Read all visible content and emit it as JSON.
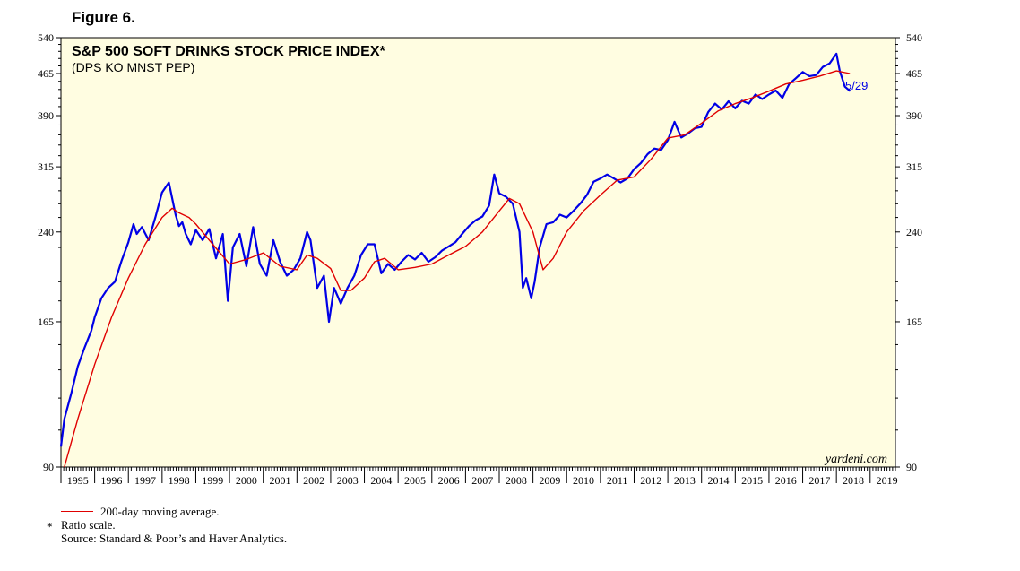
{
  "figure_label": "Figure 6.",
  "chart_data": {
    "type": "line",
    "title": "S&P 500 SOFT DRINKS STOCK PRICE INDEX*",
    "subtitle": "(DPS KO MNST PEP)",
    "scale": "log",
    "ylim": [
      90,
      540
    ],
    "y_ticks": [
      90,
      165,
      240,
      315,
      390,
      465,
      540
    ],
    "y_tick_labels": [
      "90",
      "165",
      "240",
      "315",
      "390",
      "465",
      "540"
    ],
    "xlim": [
      1995,
      2019.75
    ],
    "x_tick_labels": [
      "1995",
      "1996",
      "1997",
      "1998",
      "1999",
      "2000",
      "2001",
      "2002",
      "2003",
      "2004",
      "2005",
      "2006",
      "2007",
      "2008",
      "2009",
      "2010",
      "2011",
      "2012",
      "2013",
      "2014",
      "2015",
      "2016",
      "2017",
      "2018",
      "2019"
    ],
    "latest_label": "5/29",
    "watermark": "yardeni.com",
    "background_color": "#fffde1",
    "series": [
      {
        "name": "S&P 500 Soft Drinks Stock Price Index",
        "color": "#0000e6",
        "x": [
          1995.0,
          1995.1,
          1995.3,
          1995.5,
          1995.7,
          1995.9,
          1996.0,
          1996.2,
          1996.4,
          1996.6,
          1996.8,
          1997.0,
          1997.15,
          1997.25,
          1997.4,
          1997.6,
          1997.8,
          1998.0,
          1998.2,
          1998.4,
          1998.5,
          1998.6,
          1998.7,
          1998.85,
          1999.0,
          1999.2,
          1999.4,
          1999.6,
          1999.8,
          1999.95,
          2000.1,
          2000.3,
          2000.5,
          2000.7,
          2000.9,
          2001.1,
          2001.3,
          2001.5,
          2001.7,
          2001.9,
          2002.1,
          2002.3,
          2002.4,
          2002.6,
          2002.8,
          2002.95,
          2003.1,
          2003.3,
          2003.5,
          2003.7,
          2003.9,
          2004.1,
          2004.3,
          2004.5,
          2004.7,
          2004.9,
          2005.1,
          2005.3,
          2005.5,
          2005.7,
          2005.9,
          2006.1,
          2006.3,
          2006.5,
          2006.7,
          2006.9,
          2007.1,
          2007.3,
          2007.5,
          2007.7,
          2007.85,
          2008.0,
          2008.2,
          2008.4,
          2008.6,
          2008.7,
          2008.8,
          2008.95,
          2009.05,
          2009.2,
          2009.4,
          2009.6,
          2009.8,
          2010.0,
          2010.2,
          2010.4,
          2010.6,
          2010.8,
          2011.0,
          2011.2,
          2011.4,
          2011.6,
          2011.8,
          2012.0,
          2012.2,
          2012.4,
          2012.6,
          2012.8,
          2013.0,
          2013.2,
          2013.4,
          2013.6,
          2013.8,
          2014.0,
          2014.2,
          2014.4,
          2014.6,
          2014.8,
          2015.0,
          2015.2,
          2015.4,
          2015.6,
          2015.8,
          2016.0,
          2016.2,
          2016.4,
          2016.6,
          2016.8,
          2017.0,
          2017.2,
          2017.4,
          2017.6,
          2017.8,
          2018.0,
          2018.1,
          2018.25,
          2018.41
        ],
        "values": [
          98,
          110,
          122,
          137,
          148,
          159,
          168,
          182,
          190,
          195,
          213,
          230,
          248,
          238,
          245,
          232,
          255,
          283,
          295,
          258,
          246,
          250,
          238,
          228,
          242,
          232,
          243,
          215,
          238,
          180,
          225,
          238,
          208,
          245,
          210,
          200,
          232,
          212,
          200,
          205,
          215,
          240,
          232,
          190,
          200,
          165,
          190,
          178,
          190,
          200,
          218,
          228,
          228,
          202,
          210,
          205,
          212,
          218,
          214,
          220,
          212,
          216,
          222,
          226,
          230,
          238,
          246,
          252,
          256,
          268,
          305,
          282,
          278,
          270,
          240,
          190,
          198,
          182,
          195,
          225,
          248,
          250,
          258,
          255,
          262,
          270,
          280,
          296,
          300,
          305,
          300,
          295,
          300,
          312,
          320,
          332,
          340,
          338,
          352,
          380,
          356,
          362,
          370,
          372,
          396,
          410,
          400,
          414,
          402,
          415,
          410,
          426,
          418,
          426,
          433,
          420,
          445,
          456,
          468,
          460,
          462,
          478,
          485,
          505,
          470,
          440,
          432
        ]
      },
      {
        "name": "200-day moving average.",
        "color": "#e00000",
        "x": [
          1995.1,
          1995.5,
          1996.0,
          1996.5,
          1997.0,
          1997.5,
          1998.0,
          1998.3,
          1998.5,
          1998.8,
          1999.0,
          1999.5,
          2000.0,
          2000.5,
          2001.0,
          2001.5,
          2002.0,
          2002.3,
          2002.6,
          2003.0,
          2003.3,
          2003.6,
          2004.0,
          2004.3,
          2004.6,
          2005.0,
          2005.5,
          2006.0,
          2006.5,
          2007.0,
          2007.5,
          2008.0,
          2008.3,
          2008.6,
          2009.0,
          2009.3,
          2009.6,
          2010.0,
          2010.5,
          2011.0,
          2011.5,
          2012.0,
          2012.5,
          2013.0,
          2013.5,
          2014.0,
          2014.5,
          2015.0,
          2015.5,
          2016.0,
          2016.5,
          2017.0,
          2017.5,
          2018.0,
          2018.4
        ],
        "values": [
          90,
          110,
          138,
          168,
          198,
          228,
          255,
          265,
          260,
          255,
          248,
          228,
          210,
          214,
          220,
          208,
          205,
          218,
          215,
          206,
          188,
          188,
          198,
          212,
          215,
          205,
          207,
          210,
          218,
          226,
          240,
          262,
          276,
          270,
          240,
          205,
          215,
          240,
          262,
          280,
          298,
          302,
          325,
          355,
          360,
          378,
          398,
          410,
          420,
          432,
          445,
          452,
          460,
          470,
          465
        ]
      }
    ]
  },
  "footer": {
    "legend_label": "200-day moving average.",
    "star": "*",
    "note": "Ratio scale.",
    "source": "Source: Standard & Poor’s and Haver Analytics."
  }
}
